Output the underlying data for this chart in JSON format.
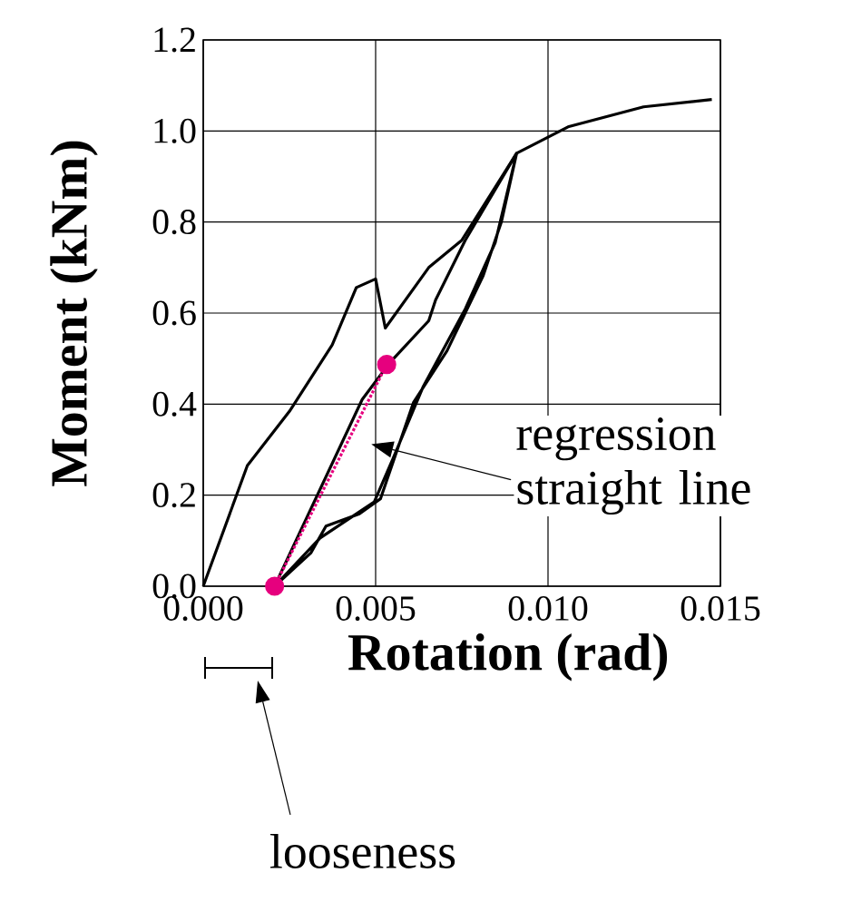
{
  "chart_data": {
    "type": "line",
    "xlabel": "Rotation (rad)",
    "ylabel": "Moment (kNm)",
    "xlim": [
      0,
      0.015
    ],
    "ylim": [
      0,
      1.2
    ],
    "xticks": [
      {
        "value": 0,
        "label": "0.000"
      },
      {
        "value": 0.005,
        "label": "0.005"
      },
      {
        "value": 0.01,
        "label": "0.010"
      },
      {
        "value": 0.015,
        "label": "0.015"
      }
    ],
    "yticks": [
      {
        "value": 0,
        "label": "0.0"
      },
      {
        "value": 0.2,
        "label": "0.2"
      },
      {
        "value": 0.4,
        "label": "0.4"
      },
      {
        "value": 0.6,
        "label": "0.6"
      },
      {
        "value": 0.8,
        "label": "0.8"
      },
      {
        "value": 1.0,
        "label": "1.0"
      },
      {
        "value": 1.2,
        "label": "1.2"
      }
    ],
    "grid": true,
    "marker": "none",
    "line_style": "solid",
    "series": [
      {
        "color": "#000000",
        "x": [
          0,
          0.00128,
          0.0025,
          0.00374,
          0.00444,
          0.005,
          0.00528,
          0.00654,
          0.0075,
          0.00909,
          0.01058,
          0.01277,
          0.01475
        ],
        "values": [
          0,
          0.265,
          0.384,
          0.53,
          0.656,
          0.675,
          0.567,
          0.7,
          0.76,
          0.951,
          1.009,
          1.053,
          1.069
        ]
      },
      {
        "color": "#000000",
        "x": [
          0.00207,
          0.00312,
          0.00356,
          0.00453,
          0.00514,
          0.0061,
          0.00707,
          0.00812,
          0.00865,
          0.00909,
          0.0076,
          0.00674,
          0.00654,
          0.0054,
          0.00461,
          0.00207,
          0.00339,
          0.00496,
          0.00549,
          0.00637,
          0.0076,
          0.00847,
          0.00909
        ],
        "values": [
          0,
          0.073,
          0.132,
          0.159,
          0.192,
          0.404,
          0.517,
          0.682,
          0.801,
          0.951,
          0.76,
          0.629,
          0.583,
          0.49,
          0.41,
          0,
          0.106,
          0.185,
          0.278,
          0.437,
          0.609,
          0.755,
          0.951
        ]
      },
      {
        "type": "line",
        "color": "#e6007e",
        "marker": "circle",
        "line_style": "dotted",
        "x": [
          0.00207,
          0.00532
        ],
        "values": [
          0,
          0.487
        ]
      }
    ],
    "annotations": [
      "regression straight line",
      "looseness"
    ]
  }
}
